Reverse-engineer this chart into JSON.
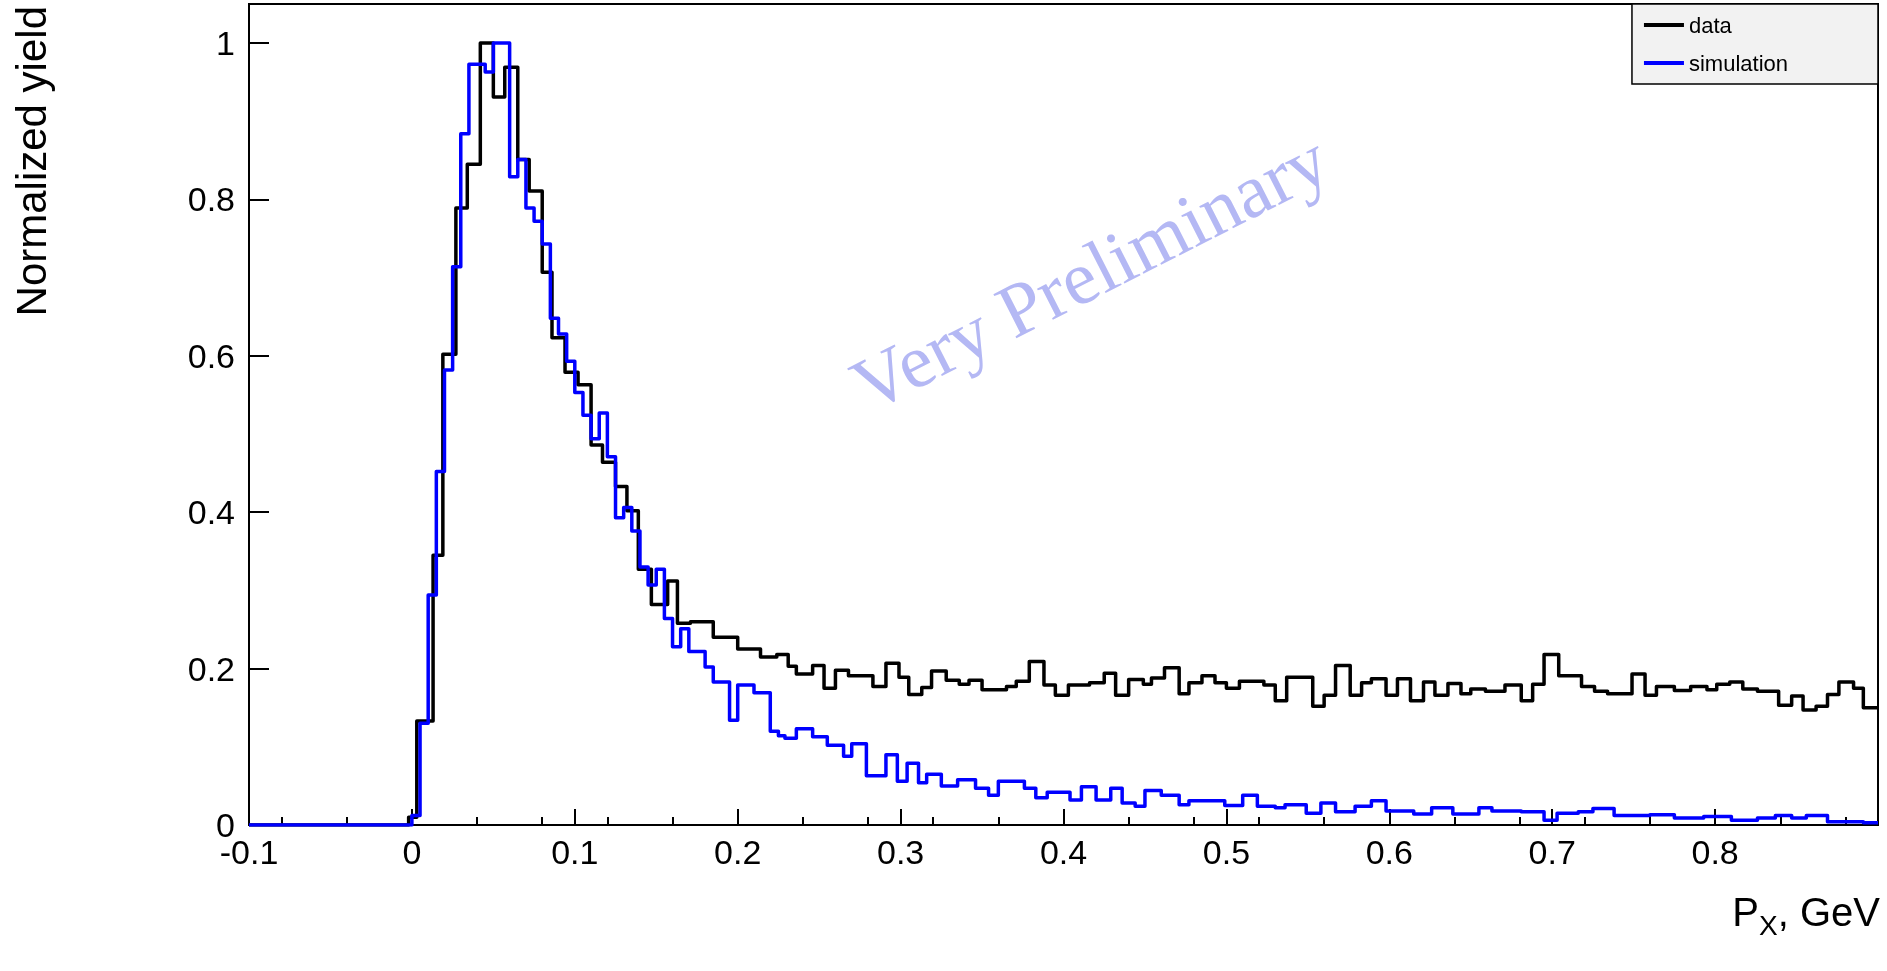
{
  "chart_data": {
    "type": "step",
    "xlabel": "P$_{X}$, GeV",
    "ylabel": "Normalized yield",
    "annotations": [
      "Very Preliminary"
    ],
    "xlim": [
      -0.1,
      0.9
    ],
    "xticks": [
      -0.1,
      0,
      0.1,
      0.2,
      0.3,
      0.4,
      0.5,
      0.6,
      0.7,
      0.8
    ],
    "ylim": [
      0,
      1.05
    ],
    "yticks": [
      0,
      0.2,
      0.4,
      0.6,
      0.8,
      1
    ],
    "grid": false,
    "legend": "top right",
    "marker": "none",
    "line_style": "solid",
    "series": [
      {
        "name": "data",
        "color": "#000000",
        "x": [
          -0.1,
          -0.002,
          0.003,
          0.013,
          0.019,
          0.027,
          0.034,
          0.042,
          0.05,
          0.057,
          0.065,
          0.072,
          0.08,
          0.086,
          0.094,
          0.102,
          0.11,
          0.117,
          0.125,
          0.132,
          0.139,
          0.147,
          0.157,
          0.163,
          0.171,
          0.185,
          0.2,
          0.214,
          0.224,
          0.231,
          0.236,
          0.246,
          0.253,
          0.26,
          0.268,
          0.283,
          0.291,
          0.299,
          0.305,
          0.313,
          0.319,
          0.328,
          0.336,
          0.342,
          0.35,
          0.365,
          0.371,
          0.379,
          0.388,
          0.395,
          0.403,
          0.416,
          0.425,
          0.432,
          0.44,
          0.449,
          0.454,
          0.462,
          0.471,
          0.477,
          0.485,
          0.493,
          0.5,
          0.508,
          0.523,
          0.53,
          0.537,
          0.553,
          0.56,
          0.567,
          0.576,
          0.583,
          0.589,
          0.598,
          0.605,
          0.613,
          0.621,
          0.628,
          0.636,
          0.644,
          0.65,
          0.659,
          0.671,
          0.681,
          0.688,
          0.695,
          0.704,
          0.718,
          0.726,
          0.734,
          0.749,
          0.757,
          0.764,
          0.775,
          0.785,
          0.795,
          0.801,
          0.809,
          0.817,
          0.826,
          0.839,
          0.847,
          0.854,
          0.862,
          0.869,
          0.876,
          0.885,
          0.891,
          0.9
        ],
        "values": [
          0,
          0.01,
          0.133,
          0.345,
          0.602,
          0.789,
          0.845,
          1.0,
          0.931,
          0.969,
          0.851,
          0.811,
          0.707,
          0.623,
          0.579,
          0.563,
          0.486,
          0.464,
          0.433,
          0.402,
          0.327,
          0.282,
          0.312,
          0.258,
          0.26,
          0.24,
          0.225,
          0.215,
          0.218,
          0.203,
          0.193,
          0.204,
          0.175,
          0.198,
          0.191,
          0.177,
          0.207,
          0.189,
          0.167,
          0.176,
          0.197,
          0.185,
          0.18,
          0.185,
          0.173,
          0.177,
          0.184,
          0.209,
          0.179,
          0.166,
          0.179,
          0.182,
          0.194,
          0.166,
          0.186,
          0.18,
          0.188,
          0.201,
          0.168,
          0.182,
          0.191,
          0.182,
          0.175,
          0.184,
          0.179,
          0.159,
          0.189,
          0.152,
          0.166,
          0.204,
          0.166,
          0.182,
          0.187,
          0.166,
          0.187,
          0.159,
          0.183,
          0.166,
          0.181,
          0.168,
          0.174,
          0.171,
          0.179,
          0.159,
          0.18,
          0.218,
          0.191,
          0.177,
          0.171,
          0.168,
          0.193,
          0.166,
          0.177,
          0.172,
          0.177,
          0.173,
          0.18,
          0.183,
          0.174,
          0.171,
          0.153,
          0.165,
          0.147,
          0.152,
          0.167,
          0.183,
          0.175,
          0.15,
          0.15
        ]
      },
      {
        "name": "simulation",
        "color": "#0000ff",
        "x": [
          -0.1,
          0,
          0.005,
          0.01,
          0.015,
          0.02,
          0.025,
          0.03,
          0.035,
          0.045,
          0.05,
          0.06,
          0.065,
          0.07,
          0.075,
          0.08,
          0.085,
          0.09,
          0.095,
          0.1,
          0.105,
          0.11,
          0.115,
          0.12,
          0.125,
          0.13,
          0.135,
          0.14,
          0.145,
          0.15,
          0.155,
          0.16,
          0.165,
          0.17,
          0.18,
          0.185,
          0.195,
          0.2,
          0.21,
          0.22,
          0.225,
          0.229,
          0.236,
          0.246,
          0.255,
          0.265,
          0.27,
          0.279,
          0.291,
          0.298,
          0.304,
          0.311,
          0.316,
          0.325,
          0.335,
          0.346,
          0.354,
          0.36,
          0.376,
          0.383,
          0.39,
          0.404,
          0.411,
          0.42,
          0.429,
          0.436,
          0.444,
          0.45,
          0.46,
          0.471,
          0.477,
          0.499,
          0.51,
          0.519,
          0.53,
          0.536,
          0.549,
          0.558,
          0.567,
          0.579,
          0.589,
          0.598,
          0.615,
          0.626,
          0.639,
          0.655,
          0.663,
          0.681,
          0.695,
          0.703,
          0.716,
          0.725,
          0.738,
          0.76,
          0.775,
          0.793,
          0.81,
          0.826,
          0.837,
          0.847,
          0.856,
          0.869,
          0.891,
          0.9
        ],
        "values": [
          0,
          0.012,
          0.13,
          0.294,
          0.452,
          0.582,
          0.714,
          0.884,
          0.973,
          0.963,
          1.0,
          0.829,
          0.851,
          0.789,
          0.772,
          0.743,
          0.648,
          0.628,
          0.593,
          0.553,
          0.524,
          0.494,
          0.527,
          0.471,
          0.393,
          0.406,
          0.376,
          0.33,
          0.307,
          0.327,
          0.264,
          0.228,
          0.251,
          0.222,
          0.202,
          0.183,
          0.134,
          0.179,
          0.169,
          0.12,
          0.114,
          0.111,
          0.123,
          0.113,
          0.102,
          0.088,
          0.104,
          0.063,
          0.09,
          0.056,
          0.079,
          0.054,
          0.065,
          0.05,
          0.058,
          0.047,
          0.038,
          0.056,
          0.047,
          0.035,
          0.042,
          0.032,
          0.049,
          0.032,
          0.047,
          0.028,
          0.024,
          0.044,
          0.038,
          0.026,
          0.031,
          0.025,
          0.038,
          0.024,
          0.022,
          0.026,
          0.015,
          0.028,
          0.017,
          0.024,
          0.031,
          0.018,
          0.014,
          0.022,
          0.014,
          0.022,
          0.018,
          0.017,
          0.006,
          0.015,
          0.017,
          0.021,
          0.012,
          0.013,
          0.009,
          0.011,
          0.006,
          0.009,
          0.012,
          0.009,
          0.012,
          0.004,
          0.003,
          0.003
        ]
      }
    ]
  }
}
